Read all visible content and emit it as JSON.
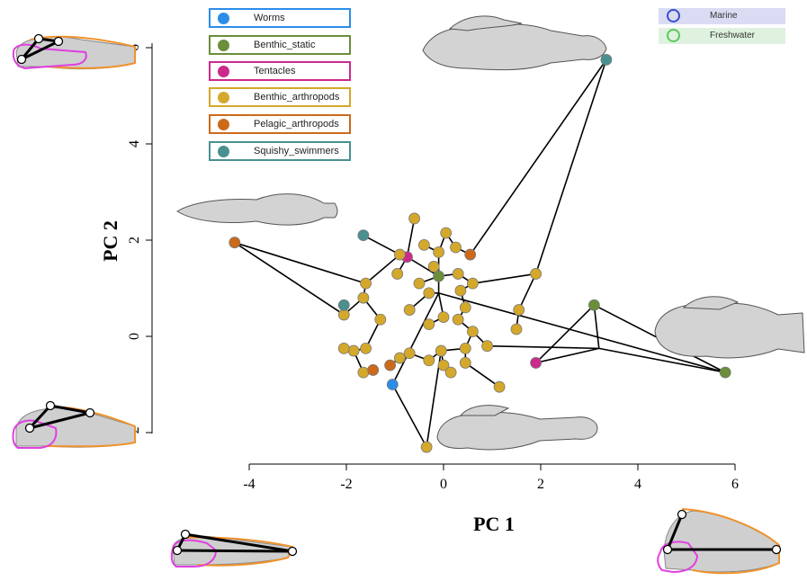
{
  "chart_data": {
    "type": "scatter",
    "xlabel": "PC 1",
    "ylabel": "PC 2",
    "xlim": [
      -4,
      6
    ],
    "ylim": [
      -2,
      6
    ],
    "x_ticks": [
      "-4",
      "-2",
      "0",
      "2",
      "4",
      "6"
    ],
    "y_ticks": [
      "-2",
      "0",
      "2",
      "4",
      "6"
    ],
    "legend": [
      {
        "name": "Worms",
        "color": "#2b8de8"
      },
      {
        "name": "Benthic_static",
        "color": "#6b8e3a"
      },
      {
        "name": "Tentacles",
        "color": "#cc2a8c"
      },
      {
        "name": "Benthic_arthropods",
        "color": "#d4a82a"
      },
      {
        "name": "Pelagic_arthropods",
        "color": "#cc6a1a"
      },
      {
        "name": "Squishy_swimmers",
        "color": "#4a9090"
      }
    ],
    "habitat_legend": [
      {
        "name": "Marine",
        "color": "#3a4ed0"
      },
      {
        "name": "Freshwater",
        "color": "#5cc85c"
      }
    ],
    "series": [
      {
        "name": "Worms",
        "points": [
          [
            -1.05,
            -1.0
          ]
        ]
      },
      {
        "name": "Benthic_static",
        "points": [
          [
            5.8,
            -0.75
          ],
          [
            3.1,
            0.65
          ],
          [
            -0.1,
            1.25
          ]
        ]
      },
      {
        "name": "Tentacles",
        "points": [
          [
            -0.75,
            1.65
          ],
          [
            1.9,
            -0.55
          ]
        ]
      },
      {
        "name": "Benthic_arthropods",
        "points": [
          [
            -0.6,
            2.45
          ],
          [
            -0.1,
            1.75
          ],
          [
            0.05,
            2.15
          ],
          [
            0.25,
            1.85
          ],
          [
            -0.4,
            1.9
          ],
          [
            -0.9,
            1.7
          ],
          [
            -0.2,
            1.45
          ],
          [
            0.3,
            1.3
          ],
          [
            0.6,
            1.1
          ],
          [
            1.9,
            1.3
          ],
          [
            -1.6,
            1.1
          ],
          [
            -1.65,
            0.8
          ],
          [
            -0.95,
            1.3
          ],
          [
            -0.5,
            1.1
          ],
          [
            -0.3,
            0.9
          ],
          [
            0.35,
            0.95
          ],
          [
            -0.7,
            0.55
          ],
          [
            -1.3,
            0.35
          ],
          [
            -2.05,
            0.45
          ],
          [
            0.0,
            0.4
          ],
          [
            0.45,
            0.6
          ],
          [
            1.55,
            0.55
          ],
          [
            1.5,
            0.15
          ],
          [
            -0.3,
            0.25
          ],
          [
            0.3,
            0.35
          ],
          [
            0.6,
            0.1
          ],
          [
            0.9,
            -0.2
          ],
          [
            0.45,
            -0.25
          ],
          [
            -0.05,
            -0.3
          ],
          [
            -0.3,
            -0.5
          ],
          [
            -0.7,
            -0.35
          ],
          [
            -0.9,
            -0.45
          ],
          [
            -1.6,
            -0.25
          ],
          [
            -1.85,
            -0.3
          ],
          [
            -2.05,
            -0.25
          ],
          [
            -1.65,
            -0.75
          ],
          [
            0.0,
            -0.6
          ],
          [
            0.15,
            -0.75
          ],
          [
            0.45,
            -0.55
          ],
          [
            1.15,
            -1.05
          ],
          [
            -0.35,
            -2.3
          ]
        ]
      },
      {
        "name": "Pelagic_arthropods",
        "points": [
          [
            -4.3,
            1.95
          ],
          [
            0.55,
            1.7
          ],
          [
            -1.45,
            -0.7
          ],
          [
            -1.1,
            -0.6
          ]
        ]
      },
      {
        "name": "Squishy_swimmers",
        "points": [
          [
            3.35,
            5.75
          ],
          [
            -1.65,
            2.1
          ],
          [
            -2.05,
            0.65
          ]
        ]
      }
    ]
  }
}
